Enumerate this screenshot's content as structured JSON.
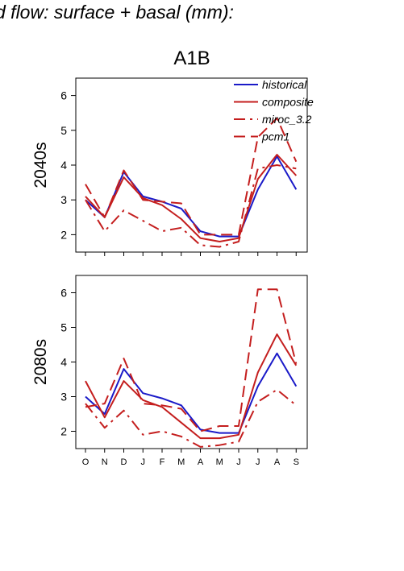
{
  "page_title": "d flow: surface + basal (mm):",
  "figure_title": "A1B",
  "colors": {
    "historical": "#1a1ac8",
    "model": "#c41e1e"
  },
  "chart_data": [
    {
      "type": "line",
      "panel": "2040s",
      "ylabel": "2040s",
      "x": [
        "O",
        "N",
        "D",
        "J",
        "F",
        "M",
        "A",
        "M",
        "J",
        "J",
        "A",
        "S"
      ],
      "ylim": [
        1.5,
        6.5
      ],
      "yticks": [
        2,
        3,
        4,
        5,
        6
      ],
      "legend": {
        "placement": "top-right"
      },
      "series": [
        {
          "name": "historical",
          "style": "solid",
          "color": "#1a1ac8",
          "values": [
            3.0,
            2.5,
            3.8,
            3.1,
            2.95,
            2.75,
            2.1,
            1.95,
            1.95,
            3.3,
            4.25,
            3.3
          ]
        },
        {
          "name": "composite",
          "style": "solid",
          "color": "#c41e1e",
          "values": [
            3.1,
            2.5,
            3.65,
            3.05,
            2.85,
            2.45,
            1.9,
            1.8,
            1.9,
            3.6,
            4.3,
            3.7
          ]
        },
        {
          "name": "miroc_3.2",
          "style": "dashdot",
          "color": "#c41e1e",
          "values": [
            3.0,
            2.1,
            2.7,
            2.4,
            2.1,
            2.2,
            1.7,
            1.65,
            1.8,
            3.9,
            4.0,
            3.9
          ]
        },
        {
          "name": "pcm1",
          "style": "dashed",
          "color": "#c41e1e",
          "values": [
            3.45,
            2.5,
            3.85,
            3.0,
            2.95,
            2.9,
            2.0,
            2.0,
            2.0,
            4.8,
            5.35,
            4.1
          ]
        }
      ]
    },
    {
      "type": "line",
      "panel": "2080s",
      "ylabel": "2080s",
      "x": [
        "O",
        "N",
        "D",
        "J",
        "F",
        "M",
        "A",
        "M",
        "J",
        "J",
        "A",
        "S"
      ],
      "ylim": [
        1.5,
        6.5
      ],
      "yticks": [
        2,
        3,
        4,
        5,
        6
      ],
      "series": [
        {
          "name": "historical",
          "style": "solid",
          "color": "#1a1ac8",
          "values": [
            3.0,
            2.5,
            3.8,
            3.1,
            2.95,
            2.75,
            2.05,
            1.95,
            1.95,
            3.3,
            4.25,
            3.3
          ]
        },
        {
          "name": "composite",
          "style": "solid",
          "color": "#c41e1e",
          "values": [
            3.45,
            2.4,
            3.45,
            2.9,
            2.7,
            2.25,
            1.8,
            1.8,
            1.9,
            3.7,
            4.8,
            3.9
          ]
        },
        {
          "name": "miroc_3.2",
          "style": "dashdot",
          "color": "#c41e1e",
          "values": [
            2.8,
            2.1,
            2.6,
            1.9,
            2.0,
            1.85,
            1.55,
            1.6,
            1.7,
            2.85,
            3.2,
            2.75
          ]
        },
        {
          "name": "pcm1",
          "style": "dashed",
          "color": "#c41e1e",
          "values": [
            2.7,
            2.8,
            4.1,
            2.8,
            2.75,
            2.65,
            2.0,
            2.15,
            2.15,
            6.1,
            6.1,
            3.95
          ]
        }
      ]
    }
  ]
}
